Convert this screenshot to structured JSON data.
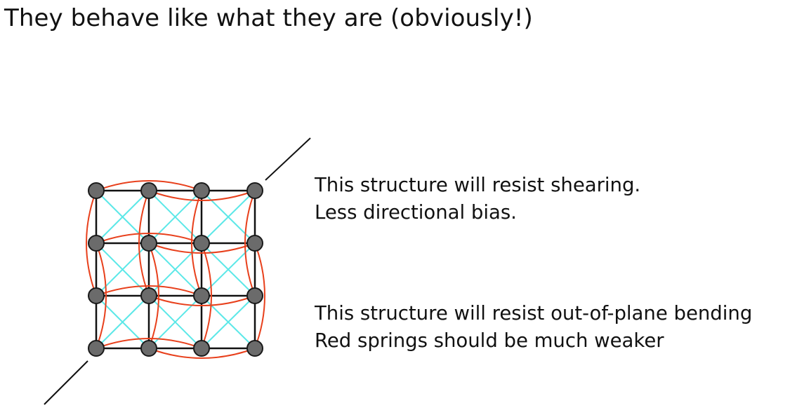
{
  "slide": {
    "title": "They behave like what they are (obviously!)"
  },
  "notes": {
    "shear": {
      "line1": "This structure will resist shearing.",
      "line2": "Less directional bias."
    },
    "bend": {
      "line1": "This structure will resist out-of-plane bending",
      "line2": "Red springs should be much weaker"
    }
  },
  "diagram": {
    "grid_rows": 4,
    "grid_cols": 4,
    "colors": {
      "structural_spring": "#111111",
      "shear_spring": "#5ce8e8",
      "bending_spring": "#e8401c",
      "node_fill": "#6b6b6b",
      "node_stroke": "#1a1a1a",
      "axis_line": "#111111"
    }
  }
}
